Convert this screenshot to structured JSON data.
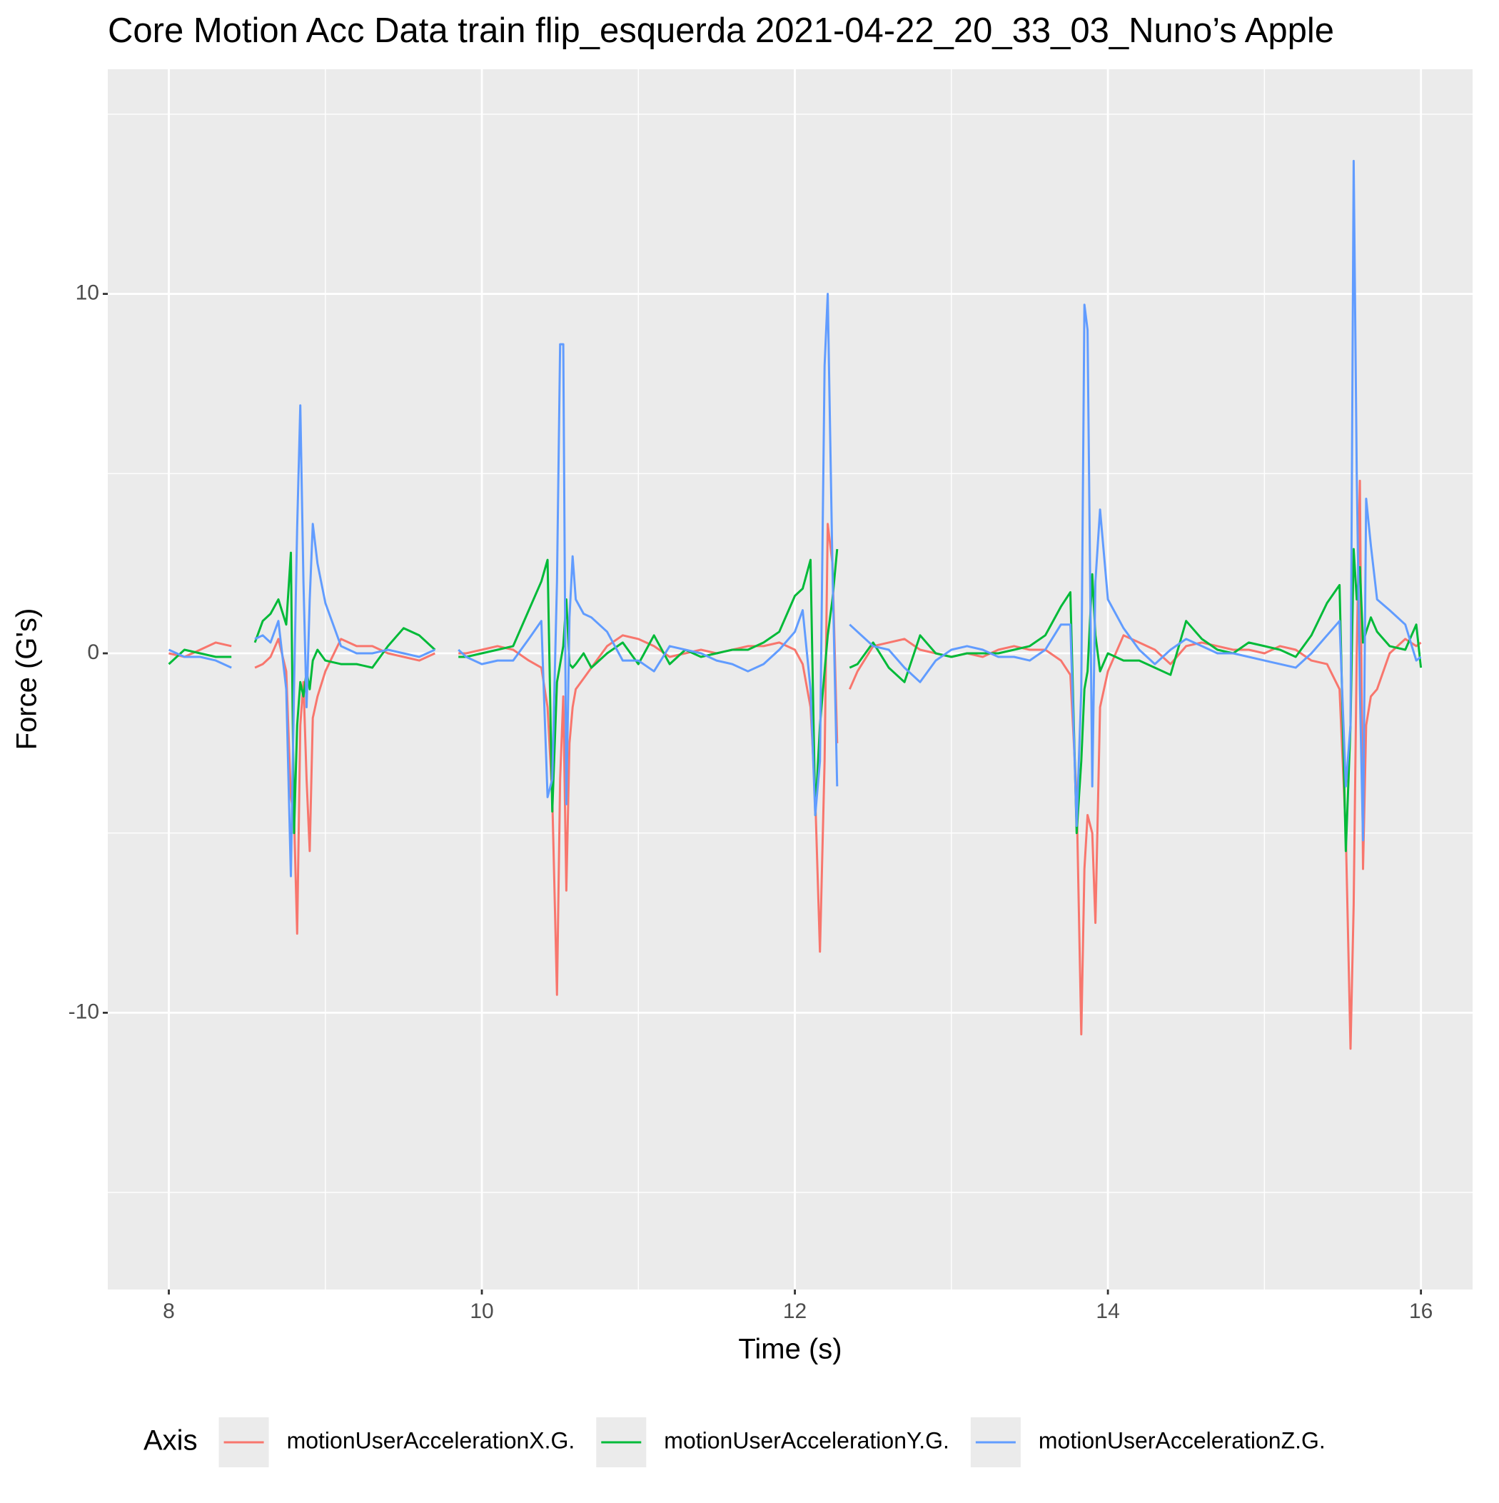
{
  "chart_data": {
    "type": "line",
    "title": "Core Motion Acc Data train flip_esquerda 2021-04-22_20_33_03_Nuno’s Apple",
    "x_label": "Time (s)",
    "y_label": "Force (G's)",
    "legend_title": "Axis",
    "legend_position": "bottom",
    "grid": true,
    "xlim": [
      7.61,
      16.33
    ],
    "ylim": [
      -17.7,
      16.25
    ],
    "xticks": [
      8,
      10,
      12,
      14,
      16
    ],
    "yticks": [
      -10,
      0,
      10
    ],
    "x_minor_ticks": [
      9,
      11,
      13,
      15
    ],
    "y_minor_ticks": [
      -15,
      -5,
      5,
      15
    ],
    "x": [
      8.0,
      8.1,
      8.2,
      8.3,
      8.4,
      8.5,
      8.55,
      8.6,
      8.65,
      8.7,
      8.75,
      8.78,
      8.8,
      8.82,
      8.84,
      8.86,
      8.88,
      8.9,
      8.92,
      8.95,
      9.0,
      9.1,
      9.2,
      9.3,
      9.4,
      9.5,
      9.6,
      9.7,
      9.77,
      9.85,
      9.9,
      10.0,
      10.1,
      10.2,
      10.3,
      10.38,
      10.42,
      10.45,
      10.48,
      10.5,
      10.52,
      10.54,
      10.56,
      10.58,
      10.6,
      10.65,
      10.7,
      10.8,
      10.9,
      11.0,
      11.1,
      11.2,
      11.3,
      11.4,
      11.5,
      11.6,
      11.7,
      11.8,
      11.9,
      12.0,
      12.05,
      12.1,
      12.13,
      12.16,
      12.19,
      12.21,
      12.24,
      12.27,
      12.3,
      12.35,
      12.4,
      12.5,
      12.6,
      12.7,
      12.8,
      12.9,
      13.0,
      13.1,
      13.2,
      13.3,
      13.4,
      13.5,
      13.6,
      13.7,
      13.76,
      13.8,
      13.83,
      13.85,
      13.87,
      13.9,
      13.92,
      13.95,
      14.0,
      14.1,
      14.2,
      14.3,
      14.4,
      14.5,
      14.6,
      14.7,
      14.8,
      14.9,
      15.0,
      15.1,
      15.2,
      15.3,
      15.4,
      15.48,
      15.52,
      15.55,
      15.57,
      15.59,
      15.61,
      15.63,
      15.65,
      15.68,
      15.72,
      15.8,
      15.9,
      15.97,
      16.0
    ],
    "series": [
      {
        "name": "motionUserAccelerationX.G.",
        "color": "#F8766D",
        "values": [
          0,
          -0.1,
          0.1,
          0.3,
          0.2,
          null,
          -0.4,
          -0.3,
          -0.1,
          0.4,
          -0.5,
          -4.0,
          -4.5,
          -7.8,
          -2.0,
          -0.8,
          -3.5,
          -5.5,
          -1.8,
          -1.2,
          -0.5,
          0.4,
          0.2,
          0.2,
          0,
          -0.1,
          -0.2,
          0,
          null,
          0,
          0,
          0.1,
          0.2,
          0.1,
          -0.2,
          -0.4,
          -1.5,
          -4.0,
          -9.5,
          -3.5,
          -1.2,
          -6.6,
          -2.5,
          -1.5,
          -1.0,
          -0.7,
          -0.4,
          0.2,
          0.5,
          0.4,
          0.2,
          -0.1,
          0,
          0.1,
          0,
          0.1,
          0.2,
          0.2,
          0.3,
          0.1,
          -0.3,
          -1.5,
          -4.0,
          -8.3,
          -3.0,
          3.6,
          2.5,
          -2.5,
          null,
          -1.0,
          -0.5,
          0.2,
          0.3,
          0.4,
          0.1,
          0,
          -0.1,
          0,
          -0.1,
          0.1,
          0.2,
          0.1,
          0.1,
          -0.2,
          -0.6,
          -4.0,
          -10.6,
          -6.0,
          -4.5,
          -5.0,
          -7.5,
          -1.5,
          -0.5,
          0.5,
          0.3,
          0.1,
          -0.3,
          0.2,
          0.3,
          0.2,
          0.1,
          0.1,
          0,
          0.2,
          0.1,
          -0.2,
          -0.3,
          -1.0,
          -5.0,
          -11.0,
          -7.0,
          0.0,
          4.8,
          -6.0,
          -2.0,
          -1.2,
          -1.0,
          0,
          0.4,
          0.2,
          0.3
        ]
      },
      {
        "name": "motionUserAccelerationY.G.",
        "color": "#00BA38",
        "values": [
          -0.3,
          0.1,
          0,
          -0.1,
          -0.1,
          null,
          0.3,
          0.9,
          1.1,
          1.5,
          0.8,
          2.8,
          -5.0,
          -2.0,
          -0.8,
          -1.2,
          -0.5,
          -1.0,
          -0.2,
          0.1,
          -0.2,
          -0.3,
          -0.3,
          -0.4,
          0.2,
          0.7,
          0.5,
          0.1,
          null,
          -0.1,
          -0.1,
          0,
          0.1,
          0.2,
          1.2,
          2.0,
          2.6,
          -4.4,
          -0.8,
          -0.3,
          0.2,
          1.5,
          -0.3,
          -0.4,
          -0.3,
          0,
          -0.4,
          0,
          0.3,
          -0.3,
          0.5,
          -0.3,
          0.1,
          -0.1,
          0,
          0.1,
          0.1,
          0.3,
          0.6,
          1.6,
          1.8,
          2.6,
          -4.5,
          -2.0,
          -0.5,
          0.5,
          1.5,
          2.9,
          null,
          -0.4,
          -0.3,
          0.3,
          -0.4,
          -0.8,
          0.5,
          0,
          -0.1,
          0,
          0,
          0,
          0.1,
          0.2,
          0.5,
          1.3,
          1.7,
          -5.0,
          -3.0,
          -1.0,
          -0.5,
          2.2,
          0.5,
          -0.5,
          0,
          -0.2,
          -0.2,
          -0.4,
          -0.6,
          0.9,
          0.4,
          0.1,
          0,
          0.3,
          0.2,
          0.1,
          -0.1,
          0.5,
          1.4,
          1.9,
          -5.5,
          -2.0,
          2.9,
          1.5,
          2.4,
          0.3,
          0.6,
          1.0,
          0.6,
          0.2,
          0.1,
          0.8,
          -0.4
        ]
      },
      {
        "name": "motionUserAccelerationZ.G.",
        "color": "#619CFF",
        "values": [
          0.1,
          -0.1,
          -0.1,
          -0.2,
          -0.4,
          null,
          0.4,
          0.5,
          0.3,
          0.9,
          -1.0,
          -6.2,
          -1.0,
          3.5,
          6.9,
          2.0,
          -1.5,
          1.5,
          3.6,
          2.5,
          1.4,
          0.2,
          0,
          0,
          0.1,
          0,
          -0.1,
          0.1,
          null,
          0.1,
          -0.1,
          -0.3,
          -0.2,
          -0.2,
          0.4,
          0.9,
          -4.0,
          -3.5,
          2.0,
          8.6,
          8.6,
          -4.2,
          1.0,
          2.7,
          1.5,
          1.1,
          1.0,
          0.6,
          -0.2,
          -0.2,
          -0.5,
          0.2,
          0.1,
          0,
          -0.2,
          -0.3,
          -0.5,
          -0.3,
          0.1,
          0.6,
          1.2,
          -1.0,
          -4.5,
          -3.0,
          8.0,
          10.0,
          2.4,
          -3.7,
          null,
          0.8,
          0.6,
          0.2,
          0.1,
          -0.4,
          -0.8,
          -0.2,
          0.1,
          0.2,
          0.1,
          -0.1,
          -0.1,
          -0.2,
          0.1,
          0.8,
          0.8,
          -4.8,
          -1.0,
          9.7,
          9.0,
          -3.7,
          2.0,
          4.0,
          1.5,
          0.7,
          0.1,
          -0.3,
          0.1,
          0.4,
          0.2,
          0,
          0,
          -0.1,
          -0.2,
          -0.3,
          -0.4,
          0,
          0.5,
          0.9,
          -3.7,
          -2.0,
          13.7,
          5.0,
          -1.0,
          -5.2,
          4.3,
          3.0,
          1.5,
          1.2,
          0.8,
          -0.2,
          -0.1
        ]
      }
    ]
  }
}
